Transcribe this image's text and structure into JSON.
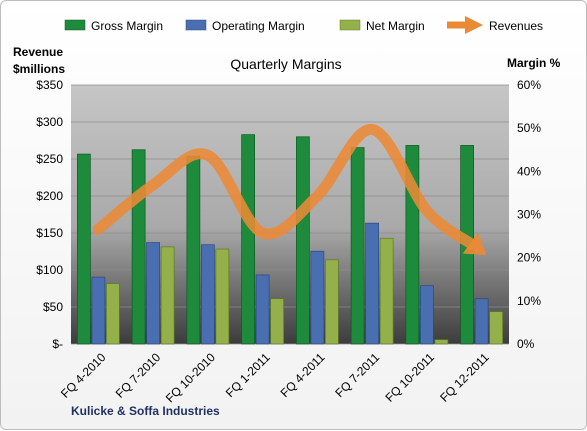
{
  "chart_data": {
    "type": "bar",
    "title": "Quarterly Margins",
    "footer": "Kulicke & Soffa Industries",
    "left_axis": {
      "label_line1": "Revenue",
      "label_line2": "$millions",
      "range": [
        0,
        350
      ],
      "ticks": [
        "$-",
        "$50",
        "$100",
        "$150",
        "$200",
        "$250",
        "$300",
        "$350"
      ]
    },
    "right_axis": {
      "label": "Margin %",
      "range": [
        0,
        60
      ],
      "ticks": [
        "0%",
        "10%",
        "20%",
        "30%",
        "40%",
        "50%",
        "60%"
      ]
    },
    "categories": [
      "FQ 4-2010",
      "FQ 7-2010",
      "FQ 10-2010",
      "FQ 1-2011",
      "FQ 4-2011",
      "FQ 7-2011",
      "FQ 10-2011",
      "FQ 12-2011"
    ],
    "series": [
      {
        "name": "Gross Margin",
        "kind": "bar",
        "axis": "right",
        "color": "#1e8a3c",
        "values": [
          44,
          45,
          43.5,
          48.5,
          48,
          45.5,
          46,
          46
        ]
      },
      {
        "name": "Operating Margin",
        "kind": "bar",
        "axis": "right",
        "color": "#4a6fb0",
        "values": [
          15.5,
          23.5,
          23,
          16,
          21.5,
          28,
          13.5,
          10.5
        ]
      },
      {
        "name": "Net Margin",
        "kind": "bar",
        "axis": "right",
        "color": "#93b04a",
        "values": [
          14,
          22.5,
          22,
          10.5,
          19.5,
          24.5,
          1,
          7.5
        ]
      },
      {
        "name": "Revenues",
        "kind": "arrow-line",
        "axis": "left",
        "color": "#ea8a35",
        "values": [
          155,
          215,
          255,
          150,
          200,
          290,
          180,
          125
        ]
      }
    ],
    "grid": true,
    "legend_position": "top"
  }
}
